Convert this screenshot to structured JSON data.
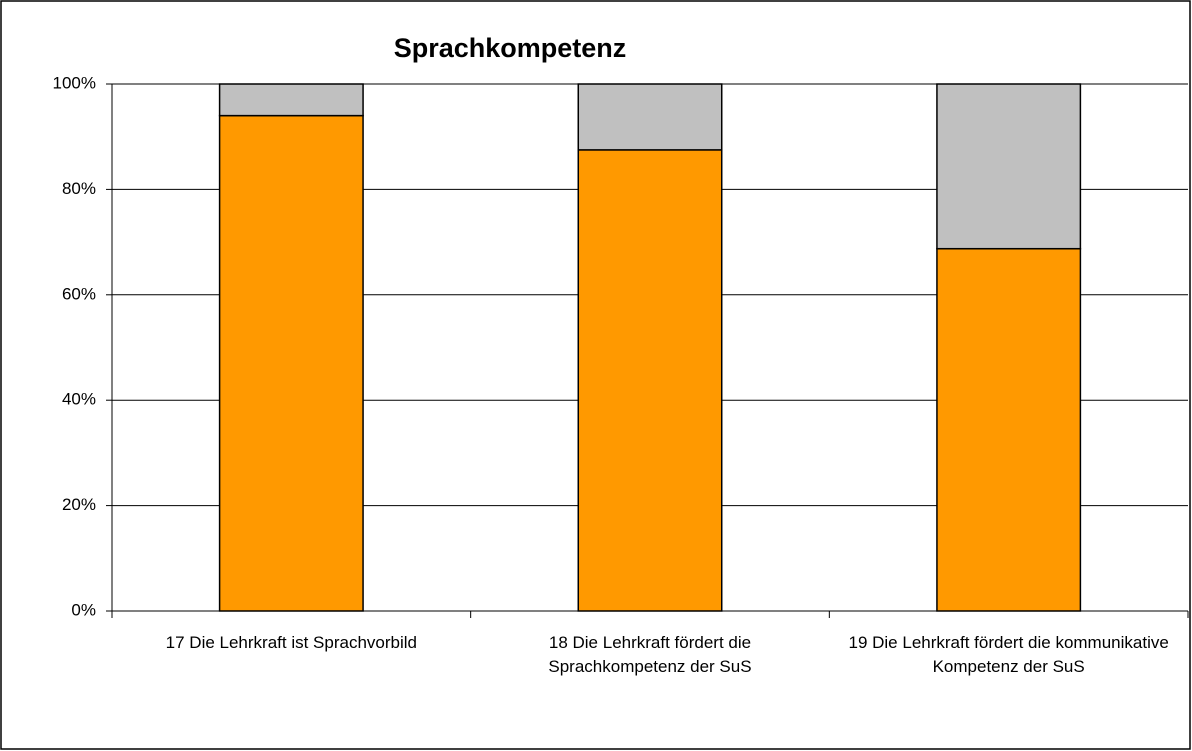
{
  "chart_data": {
    "type": "stacked_bar",
    "title": "Sprachkompetenz",
    "categories": [
      "17 Die Lehrkraft ist Sprachvorbild",
      "18 Die Lehrkraft fördert die Sprachkompetenz der SuS",
      "19 Die Lehrkraft fördert die kommunikative Kompetenz der SuS"
    ],
    "series": [
      {
        "color": "#ff9900",
        "values": [
          94,
          87.5,
          68.75
        ]
      },
      {
        "color": "#c0c0c0",
        "values": [
          6,
          12.5,
          31.25
        ]
      }
    ],
    "ylim": [
      0,
      100
    ],
    "yticks": [
      {
        "value": 0,
        "label": "0%"
      },
      {
        "value": 20,
        "label": "20%"
      },
      {
        "value": 40,
        "label": "40%"
      },
      {
        "value": 60,
        "label": "60%"
      },
      {
        "value": 80,
        "label": "80%"
      },
      {
        "value": 100,
        "label": "100%"
      }
    ],
    "grid": true
  }
}
